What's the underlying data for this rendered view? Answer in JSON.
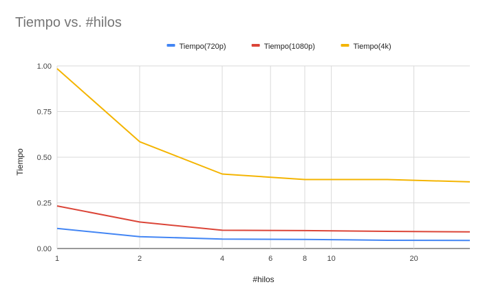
{
  "chart_data": {
    "type": "line",
    "title": "Tiempo vs. #hilos",
    "xlabel": "#hilos",
    "ylabel": "Tiempo",
    "x_scale": "log",
    "xlim": [
      1,
      32
    ],
    "ylim": [
      0,
      1
    ],
    "x_ticks": [
      1,
      2,
      4,
      6,
      8,
      10,
      20
    ],
    "y_ticks": [
      "0.00",
      "0.25",
      "0.50",
      "0.75",
      "1.00"
    ],
    "grid": true,
    "legend_position": "top",
    "x": [
      1,
      2,
      4,
      8,
      16,
      32
    ],
    "series": [
      {
        "name": "Tiempo(720p)",
        "color": "#4285f4",
        "values": [
          0.11,
          0.065,
          0.052,
          0.05,
          0.045,
          0.044
        ]
      },
      {
        "name": "Tiempo(1080p)",
        "color": "#db4437",
        "values": [
          0.233,
          0.145,
          0.1,
          0.098,
          0.094,
          0.091
        ]
      },
      {
        "name": "Tiempo(4k)",
        "color": "#f4b400",
        "values": [
          0.985,
          0.585,
          0.408,
          0.378,
          0.378,
          0.365
        ]
      }
    ]
  }
}
